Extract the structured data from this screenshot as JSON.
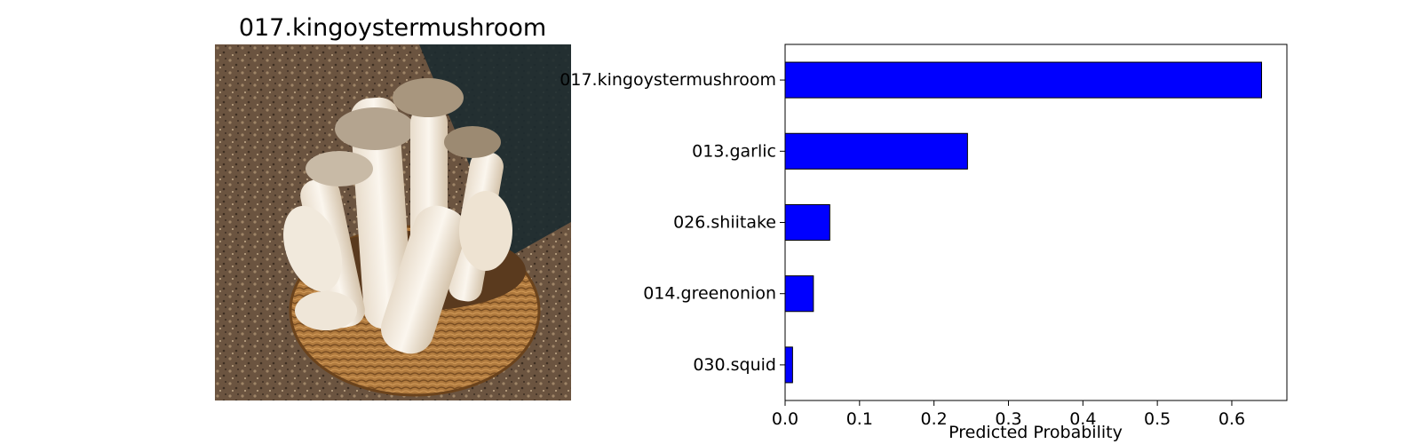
{
  "image_panel": {
    "title": "017.kingoystermushroom",
    "subject": "king oyster mushrooms in a woven basket on dirt ground"
  },
  "colors": {
    "bar_fill": "#0000ff",
    "bar_edge": "#000000"
  },
  "chart_data": {
    "type": "bar",
    "orientation": "horizontal",
    "categories": [
      "017.kingoystermushroom",
      "013.garlic",
      "026.shiitake",
      "014.greenonion",
      "030.squid"
    ],
    "values": [
      0.64,
      0.245,
      0.06,
      0.038,
      0.01
    ],
    "title": "",
    "xlabel": "Predicted Probability",
    "ylabel": "",
    "xlim": [
      0,
      0.674
    ],
    "xticks": [
      "0.0",
      "0.1",
      "0.2",
      "0.3",
      "0.4",
      "0.5",
      "0.6"
    ],
    "grid": false,
    "legend": false
  }
}
